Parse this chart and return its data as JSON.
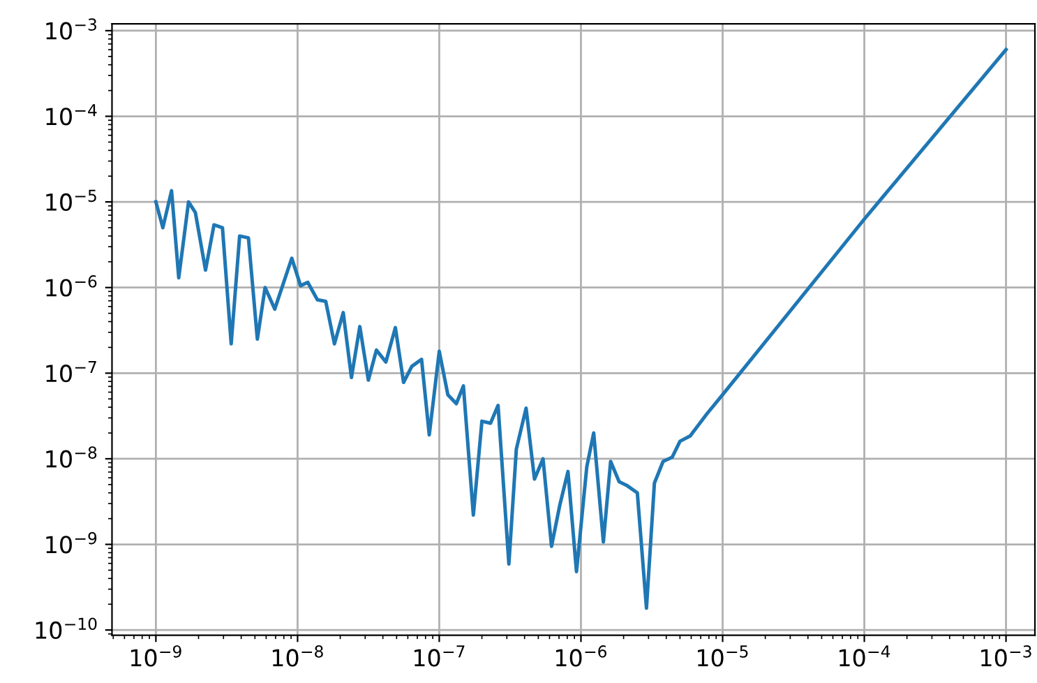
{
  "chart_data": {
    "type": "line",
    "log": "xy",
    "grid": true,
    "color": "#1f77b4",
    "x": [
      1e-09,
      1.12e-09,
      1.29e-09,
      1.45e-09,
      1.7e-09,
      1.9e-09,
      2.24e-09,
      2.57e-09,
      2.95e-09,
      3.4e-09,
      3.9e-09,
      4.5e-09,
      5.2e-09,
      5.9e-09,
      6.9e-09,
      9.1e-09,
      1.05e-08,
      1.18e-08,
      1.38e-08,
      1.58e-08,
      1.82e-08,
      2.1e-08,
      2.4e-08,
      2.75e-08,
      3.16e-08,
      3.6e-08,
      4.2e-08,
      4.9e-08,
      5.6e-08,
      6.4e-08,
      7.5e-08,
      8.5e-08,
      1e-07,
      1.15e-07,
      1.32e-07,
      1.48e-07,
      1.74e-07,
      2e-07,
      2.3e-07,
      2.6e-07,
      3.1e-07,
      3.5e-07,
      4.1e-07,
      4.7e-07,
      5.4e-07,
      6.2e-07,
      7.1e-07,
      8.1e-07,
      9.3e-07,
      1.1e-06,
      1.23e-06,
      1.44e-06,
      1.62e-06,
      1.86e-06,
      2.1e-06,
      2.5e-06,
      2.9e-06,
      3.3e-06,
      3.8e-06,
      4.4e-06,
      5e-06,
      5.9e-06,
      7.8e-06,
      1e-05,
      0.0001,
      0.001
    ],
    "values": [
      1e-05,
      5e-06,
      1.35e-05,
      1.3e-06,
      1e-05,
      7.5e-06,
      1.6e-06,
      5.4e-06,
      5e-06,
      2.2e-07,
      4e-06,
      3.8e-06,
      2.5e-07,
      1e-06,
      5.6e-07,
      2.2e-06,
      1.05e-06,
      1.15e-06,
      7.2e-07,
      6.9e-07,
      2.2e-07,
      5.1e-07,
      8.9e-08,
      3.5e-07,
      8.3e-08,
      1.86e-07,
      1.35e-07,
      3.4e-07,
      7.8e-08,
      1.2e-07,
      1.45e-07,
      1.9e-08,
      1.8e-07,
      5.6e-08,
      4.4e-08,
      7.1e-08,
      2.2e-09,
      2.75e-08,
      2.6e-08,
      4.2e-08,
      5.9e-10,
      1.3e-08,
      3.9e-08,
      5.8e-09,
      1e-08,
      9.5e-10,
      2.9e-09,
      7.1e-09,
      4.8e-10,
      8.1e-09,
      2e-08,
      1.07e-09,
      9.3e-09,
      5.4e-09,
      4.9e-09,
      4e-09,
      1.8e-10,
      5.2e-09,
      9.3e-09,
      1.04e-08,
      1.6e-08,
      1.85e-08,
      3.4e-08,
      5.6e-08,
      6.3e-06,
      0.0006
    ],
    "xlim": [
      4.9e-10,
      0.0016
    ],
    "ylim": [
      8.7e-11,
      0.0012
    ],
    "xticks": [
      {
        "value": 1e-09,
        "label": "10$^{−9}$"
      },
      {
        "value": 1e-08,
        "label": "10$^{−8}$"
      },
      {
        "value": 1e-07,
        "label": "10$^{−7}$"
      },
      {
        "value": 1e-06,
        "label": "10$^{−6}$"
      },
      {
        "value": 1e-05,
        "label": "10$^{−5}$"
      },
      {
        "value": 0.0001,
        "label": "10$^{−4}$"
      },
      {
        "value": 0.001,
        "label": "10$^{−3}$"
      }
    ],
    "yticks": [
      {
        "value": 1e-10,
        "label": "10$^{−10}$"
      },
      {
        "value": 1e-09,
        "label": "10$^{−9}$"
      },
      {
        "value": 1e-08,
        "label": "10$^{−8}$"
      },
      {
        "value": 1e-07,
        "label": "10$^{−7}$"
      },
      {
        "value": 1e-06,
        "label": "10$^{−6}$"
      },
      {
        "value": 1e-05,
        "label": "10$^{−5}$"
      },
      {
        "value": 0.0001,
        "label": "10$^{−4}$"
      },
      {
        "value": 0.001,
        "label": "10$^{−3}$"
      }
    ]
  }
}
